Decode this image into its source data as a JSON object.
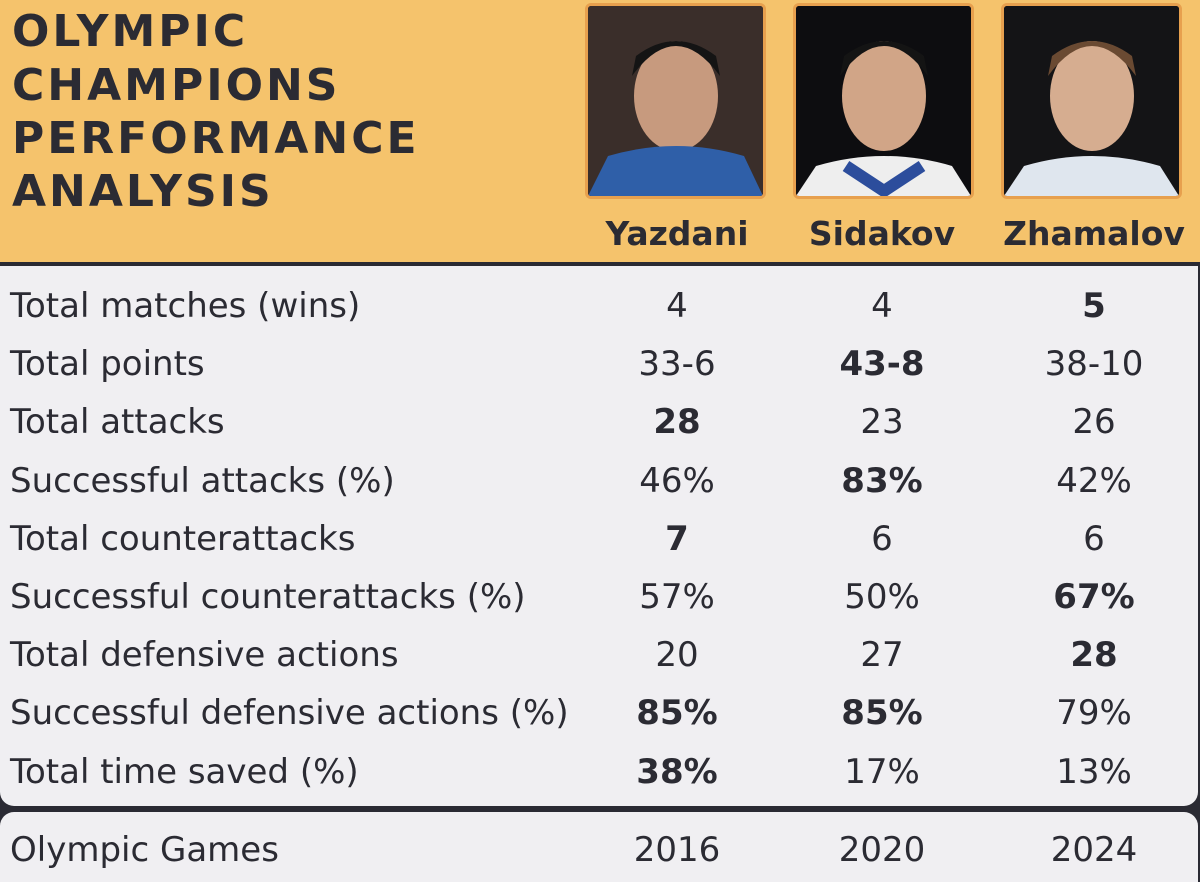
{
  "header": {
    "title_lines": [
      "OLYMPIC",
      "CHAMPIONS",
      "PERFORMANCE",
      "ANALYSIS"
    ],
    "athletes": [
      "Yazdani",
      "Sidakov",
      "Zhamalov"
    ]
  },
  "table": {
    "rows": [
      {
        "label": "Total matches (wins)",
        "values": [
          "4",
          "4",
          "5"
        ],
        "best": [
          2
        ]
      },
      {
        "label": "Total points",
        "values": [
          "33-6",
          "43-8",
          "38-10"
        ],
        "best": [
          1
        ]
      },
      {
        "label": "Total attacks",
        "values": [
          "28",
          "23",
          "26"
        ],
        "best": [
          0
        ]
      },
      {
        "label": "Successful attacks (%)",
        "values": [
          "46%",
          "83%",
          "42%"
        ],
        "best": [
          1
        ]
      },
      {
        "label": "Total counterattacks",
        "values": [
          "7",
          "6",
          "6"
        ],
        "best": [
          0
        ]
      },
      {
        "label": "Successful counterattacks (%)",
        "values": [
          "57%",
          "50%",
          "67%"
        ],
        "best": [
          2
        ]
      },
      {
        "label": "Total defensive actions",
        "values": [
          "20",
          "27",
          "28"
        ],
        "best": [
          2
        ]
      },
      {
        "label": "Successful defensive actions (%)",
        "values": [
          "85%",
          "85%",
          "79%"
        ],
        "best": [
          0,
          1
        ]
      },
      {
        "label": "Total time saved (%)",
        "values": [
          "38%",
          "17%",
          "13%"
        ],
        "best": [
          0
        ]
      }
    ],
    "footer": {
      "label": "Olympic Games",
      "values": [
        "2016",
        "2020",
        "2024"
      ]
    }
  }
}
